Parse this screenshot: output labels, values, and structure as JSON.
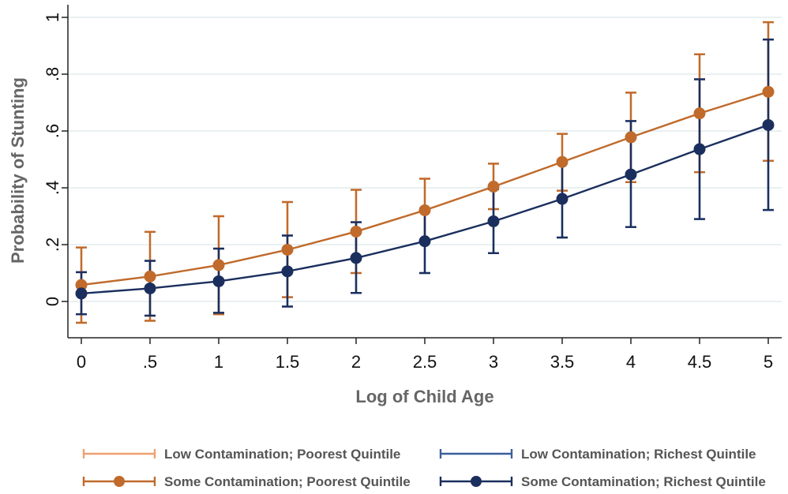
{
  "chart_data": {
    "type": "line",
    "title": "",
    "xlabel": "Log of Child Age",
    "ylabel": "Probability of Stunting",
    "xlim": [
      0,
      5
    ],
    "ylim": [
      -0.12,
      1.0
    ],
    "x": [
      0,
      0.5,
      1,
      1.5,
      2,
      2.5,
      3,
      3.5,
      4,
      4.5,
      5
    ],
    "x_tick_labels": [
      "0",
      ".5",
      "1",
      "1.5",
      "2",
      "2.5",
      "3",
      "3.5",
      "4",
      "4.5",
      "5"
    ],
    "y_ticks": [
      0,
      0.2,
      0.4,
      0.6,
      0.8,
      1.0
    ],
    "y_tick_labels": [
      "0",
      ".2",
      ".4",
      ".6",
      ".8",
      "1"
    ],
    "grid": true,
    "legend_position": "bottom",
    "series": [
      {
        "name": "Low Contamination; Poorest Quintile",
        "color": "#F0A070",
        "style": "ci-only",
        "values": [
          0.058,
          0.088,
          0.128,
          0.182,
          0.246,
          0.321,
          0.404,
          0.491,
          0.578,
          0.662,
          0.738
        ],
        "lower": [
          -0.075,
          -0.068,
          -0.045,
          0.015,
          0.1,
          0.21,
          0.325,
          0.39,
          0.42,
          0.455,
          0.495
        ],
        "upper": [
          0.19,
          0.245,
          0.3,
          0.35,
          0.393,
          0.432,
          0.485,
          0.59,
          0.735,
          0.87,
          0.983
        ]
      },
      {
        "name": "Low Contamination; Richest Quintile",
        "color": "#3A5F9A",
        "style": "ci-only",
        "values": [
          0.028,
          0.046,
          0.071,
          0.106,
          0.153,
          0.212,
          0.282,
          0.361,
          0.447,
          0.536,
          0.621
        ],
        "lower": [
          -0.045,
          -0.05,
          -0.04,
          -0.018,
          0.03,
          0.1,
          0.17,
          0.225,
          0.262,
          0.29,
          0.322
        ],
        "upper": [
          0.103,
          0.143,
          0.186,
          0.232,
          0.279,
          0.326,
          0.395,
          0.495,
          0.635,
          0.782,
          0.922
        ]
      },
      {
        "name": "Some Contamination; Poorest Quintile",
        "color": "#C06A2B",
        "style": "line-markers-ci",
        "values": [
          0.058,
          0.088,
          0.128,
          0.182,
          0.246,
          0.321,
          0.404,
          0.491,
          0.578,
          0.662,
          0.738
        ],
        "lower": [
          -0.075,
          -0.068,
          -0.045,
          0.015,
          0.1,
          0.21,
          0.325,
          0.39,
          0.42,
          0.455,
          0.495
        ],
        "upper": [
          0.19,
          0.245,
          0.3,
          0.35,
          0.393,
          0.432,
          0.485,
          0.59,
          0.735,
          0.87,
          0.983
        ]
      },
      {
        "name": "Some Contamination; Richest Quintile",
        "color": "#1B2F5E",
        "style": "line-markers-ci",
        "values": [
          0.028,
          0.046,
          0.071,
          0.106,
          0.153,
          0.212,
          0.282,
          0.361,
          0.447,
          0.536,
          0.621
        ],
        "lower": [
          -0.045,
          -0.05,
          -0.04,
          -0.018,
          0.03,
          0.1,
          0.17,
          0.225,
          0.262,
          0.29,
          0.322
        ],
        "upper": [
          0.103,
          0.143,
          0.186,
          0.232,
          0.279,
          0.326,
          0.395,
          0.495,
          0.635,
          0.782,
          0.922
        ]
      }
    ]
  }
}
